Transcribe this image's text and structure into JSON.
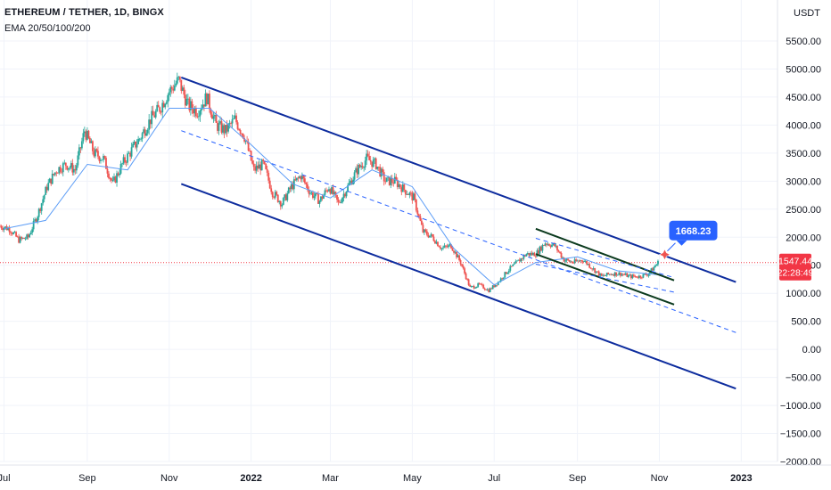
{
  "header": {
    "title": "ETHEREUM / TETHER, 1D, BINGX",
    "indicator": "EMA 20/50/100/200"
  },
  "chart_data": {
    "type": "line",
    "title": "ETHEREUM / TETHER, 1D, BINGX",
    "currency_label": "USDT",
    "y_ticks": [
      5500,
      5000,
      4500,
      4000,
      3500,
      3000,
      2500,
      2000,
      1500,
      1000,
      500,
      0,
      -500,
      -1000,
      -1500,
      -2000
    ],
    "y_tick_labels": [
      "5500.00",
      "5000.00",
      "4500.00",
      "4000.00",
      "3500.00",
      "3000.00",
      "2500.00",
      "2000.00",
      "1500.00",
      "1000.00",
      "500.00",
      "0.00",
      "−500.00",
      "−1000.00",
      "−1500.00",
      "−2000.00"
    ],
    "ylim": [
      -2000,
      5600
    ],
    "x_ticks": [
      {
        "label": "Jul",
        "x": "2021-07-01"
      },
      {
        "label": "Sep",
        "x": "2021-09-01"
      },
      {
        "label": "Nov",
        "x": "2021-11-01"
      },
      {
        "label": "2022",
        "x": "2022-01-01",
        "bold": true
      },
      {
        "label": "Mar",
        "x": "2022-03-01"
      },
      {
        "label": "May",
        "x": "2022-05-01"
      },
      {
        "label": "Jul",
        "x": "2022-07-01"
      },
      {
        "label": "Sep",
        "x": "2022-09-01"
      },
      {
        "label": "Nov",
        "x": "2022-11-01"
      },
      {
        "label": "2023",
        "x": "2023-01-01",
        "bold": true
      }
    ],
    "xlim": [
      "2021-06-28",
      "2023-01-28"
    ],
    "price_series": {
      "name": "ETH/USDT",
      "x": [
        "2021-06-28",
        "2021-07-05",
        "2021-07-12",
        "2021-07-19",
        "2021-07-26",
        "2021-08-02",
        "2021-08-09",
        "2021-08-16",
        "2021-08-23",
        "2021-08-30",
        "2021-09-06",
        "2021-09-13",
        "2021-09-20",
        "2021-09-27",
        "2021-10-04",
        "2021-10-11",
        "2021-10-18",
        "2021-10-25",
        "2021-11-01",
        "2021-11-08",
        "2021-11-15",
        "2021-11-22",
        "2021-11-29",
        "2021-12-06",
        "2021-12-13",
        "2021-12-20",
        "2021-12-27",
        "2022-01-03",
        "2022-01-10",
        "2022-01-17",
        "2022-01-24",
        "2022-01-31",
        "2022-02-07",
        "2022-02-14",
        "2022-02-21",
        "2022-02-28",
        "2022-03-07",
        "2022-03-14",
        "2022-03-21",
        "2022-03-28",
        "2022-04-04",
        "2022-04-11",
        "2022-04-18",
        "2022-04-25",
        "2022-05-02",
        "2022-05-09",
        "2022-05-16",
        "2022-05-23",
        "2022-05-30",
        "2022-06-06",
        "2022-06-13",
        "2022-06-20",
        "2022-06-27",
        "2022-07-04",
        "2022-07-11",
        "2022-07-18",
        "2022-07-25",
        "2022-08-01",
        "2022-08-08",
        "2022-08-15",
        "2022-08-22",
        "2022-08-29",
        "2022-09-05",
        "2022-09-12",
        "2022-09-19",
        "2022-09-26",
        "2022-10-03",
        "2022-10-10",
        "2022-10-17",
        "2022-10-24",
        "2022-10-31"
      ],
      "close": [
        2200,
        2150,
        1950,
        2000,
        2400,
        2900,
        3200,
        3300,
        3200,
        3900,
        3500,
        3400,
        2950,
        3300,
        3550,
        3800,
        4100,
        4300,
        4600,
        4800,
        4350,
        4250,
        4500,
        4000,
        3900,
        4100,
        3800,
        3200,
        3300,
        2800,
        2600,
        2900,
        3100,
        2800,
        2650,
        2900,
        2600,
        2900,
        3200,
        3400,
        3300,
        3000,
        3000,
        2850,
        2700,
        2100,
        2000,
        1800,
        1850,
        1550,
        1100,
        1150,
        1050,
        1200,
        1400,
        1550,
        1700,
        1700,
        1900,
        1850,
        1600,
        1550,
        1600,
        1450,
        1300,
        1350,
        1350,
        1300,
        1300,
        1350,
        1547.44
      ]
    },
    "ema_series": {
      "name": "EMA 20",
      "x": [
        "2021-07-01",
        "2021-08-01",
        "2021-09-01",
        "2021-10-01",
        "2021-11-01",
        "2021-12-01",
        "2022-01-01",
        "2022-02-01",
        "2022-03-01",
        "2022-04-01",
        "2022-05-01",
        "2022-06-01",
        "2022-07-01",
        "2022-08-01",
        "2022-09-01",
        "2022-10-01",
        "2022-10-31"
      ],
      "values": [
        2150,
        2300,
        3300,
        3200,
        4300,
        4300,
        3650,
        2950,
        2700,
        3200,
        2900,
        1800,
        1150,
        1550,
        1650,
        1400,
        1330
      ]
    },
    "channel_lines": [
      {
        "name": "upper-channel",
        "x": [
          "2021-11-10",
          "2022-12-28"
        ],
        "y": [
          4850,
          1200
        ],
        "style": "solid"
      },
      {
        "name": "lower-channel",
        "x": [
          "2021-11-10",
          "2022-12-28"
        ],
        "y": [
          2950,
          -700
        ],
        "style": "solid"
      },
      {
        "name": "mid-channel",
        "x": [
          "2021-11-10",
          "2022-12-28"
        ],
        "y": [
          3900,
          300
        ],
        "style": "dashed"
      },
      {
        "name": "small-upper",
        "x": [
          "2022-08-01",
          "2022-11-12"
        ],
        "y": [
          2150,
          1230
        ],
        "style": "solid"
      },
      {
        "name": "small-lower",
        "x": [
          "2022-08-01",
          "2022-11-12"
        ],
        "y": [
          1700,
          800
        ],
        "style": "solid"
      },
      {
        "name": "small-dash-top",
        "x": [
          "2022-08-01",
          "2022-11-12"
        ],
        "y": [
          1980,
          1280
        ],
        "style": "dashed"
      },
      {
        "name": "small-dash-bottom",
        "x": [
          "2022-08-01",
          "2022-11-12"
        ],
        "y": [
          1520,
          1020
        ],
        "style": "dashed"
      }
    ],
    "reference_line": {
      "value": 1547.44,
      "style": "dotted"
    },
    "annotation": {
      "label": "1668.23",
      "x": "2022-11-05",
      "y": 1690
    },
    "current_price": {
      "label": "1547.44",
      "countdown": "22:28:49",
      "value": 1547.44
    },
    "colors": {
      "channel": "#0d2c9e",
      "dashed": "#2962ff",
      "small_channel": "#0b3a1e",
      "up": "#26a69a",
      "down": "#ef5350",
      "ema": "#5b9cf6",
      "price_tag": "#f23645",
      "callout": "#2962ff",
      "grid": "#f0f3fa"
    },
    "grid": true,
    "legend": "none"
  }
}
